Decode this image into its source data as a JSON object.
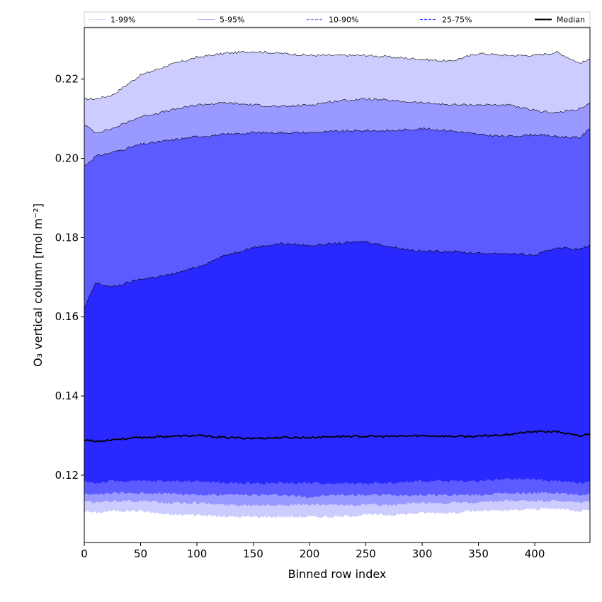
{
  "chart_data": {
    "type": "area",
    "title": "",
    "xlabel": "Binned row index",
    "ylabel": "O₃ vertical column [mol m⁻²]",
    "xlim": [
      0,
      449
    ],
    "ylim": [
      0.103,
      0.233
    ],
    "x_ticks": [
      0,
      50,
      100,
      150,
      200,
      250,
      300,
      350,
      400
    ],
    "y_ticks": [
      0.12,
      0.14,
      0.16,
      0.18,
      0.2,
      0.22
    ],
    "y_tick_labels": [
      "0.12",
      "0.14",
      "0.16",
      "0.18",
      "0.20",
      "0.22"
    ],
    "grid": false,
    "legend_position": "top",
    "colors": {
      "band_1_99": "#ccccff",
      "band_5_95": "#9999ff",
      "band_10_90": "#5b5bff",
      "band_25_75": "#2828ff",
      "median": "#000000",
      "outline": "#000000"
    },
    "legend": [
      {
        "label": "1-99%",
        "color": "#d0d0ff",
        "style": "thin"
      },
      {
        "label": "5-95%",
        "color": "#9a9aff",
        "style": "thin"
      },
      {
        "label": "10-90%",
        "color": "#8080ff",
        "style": "dashed"
      },
      {
        "label": "25-75%",
        "color": "#4040ff",
        "style": "dashed"
      },
      {
        "label": "Median",
        "color": "#000000",
        "style": "solid"
      }
    ],
    "x": [
      0,
      10,
      25,
      50,
      75,
      100,
      125,
      150,
      175,
      200,
      225,
      250,
      275,
      300,
      325,
      350,
      375,
      400,
      420,
      440,
      449
    ],
    "series": [
      {
        "name": "1-99%",
        "lower": [
          0.111,
          0.1105,
          0.111,
          0.111,
          0.11,
          0.11,
          0.1095,
          0.1095,
          0.1095,
          0.1095,
          0.1095,
          0.11,
          0.11,
          0.1105,
          0.1105,
          0.111,
          0.111,
          0.1115,
          0.1115,
          0.111,
          0.1115
        ],
        "upper": [
          0.215,
          0.215,
          0.216,
          0.221,
          0.2235,
          0.2255,
          0.2265,
          0.227,
          0.2265,
          0.226,
          0.226,
          0.226,
          0.2255,
          0.225,
          0.2245,
          0.2265,
          0.226,
          0.226,
          0.2268,
          0.224,
          0.225
        ]
      },
      {
        "name": "5-95%",
        "lower": [
          0.1135,
          0.113,
          0.1135,
          0.1135,
          0.113,
          0.113,
          0.1125,
          0.1125,
          0.1125,
          0.1125,
          0.1125,
          0.1125,
          0.1125,
          0.113,
          0.113,
          0.113,
          0.1135,
          0.1135,
          0.1135,
          0.113,
          0.1135
        ],
        "upper": [
          0.2085,
          0.2065,
          0.2075,
          0.2105,
          0.212,
          0.2135,
          0.214,
          0.2135,
          0.213,
          0.2135,
          0.2145,
          0.215,
          0.2145,
          0.214,
          0.2135,
          0.2135,
          0.2135,
          0.212,
          0.2115,
          0.2125,
          0.2138
        ]
      },
      {
        "name": "10-90%",
        "lower": [
          0.1155,
          0.115,
          0.1155,
          0.1155,
          0.1155,
          0.115,
          0.115,
          0.115,
          0.115,
          0.1145,
          0.115,
          0.115,
          0.115,
          0.115,
          0.115,
          0.115,
          0.1155,
          0.1155,
          0.1155,
          0.115,
          0.1155
        ],
        "upper": [
          0.198,
          0.2005,
          0.2015,
          0.2035,
          0.2045,
          0.2055,
          0.206,
          0.2065,
          0.2065,
          0.2065,
          0.2068,
          0.207,
          0.207,
          0.2075,
          0.207,
          0.206,
          0.2055,
          0.206,
          0.2055,
          0.2052,
          0.2075
        ]
      },
      {
        "name": "25-75%",
        "lower": [
          0.1185,
          0.118,
          0.1185,
          0.1185,
          0.1185,
          0.1185,
          0.118,
          0.118,
          0.118,
          0.118,
          0.118,
          0.118,
          0.118,
          0.1185,
          0.1185,
          0.1185,
          0.119,
          0.119,
          0.1185,
          0.118,
          0.1185
        ],
        "upper": [
          0.162,
          0.1685,
          0.1675,
          0.1695,
          0.1705,
          0.1725,
          0.1755,
          0.1775,
          0.1785,
          0.178,
          0.1785,
          0.179,
          0.1775,
          0.1765,
          0.1765,
          0.176,
          0.176,
          0.1755,
          0.1775,
          0.177,
          0.178
        ]
      },
      {
        "name": "Median",
        "values": [
          0.129,
          0.1285,
          0.129,
          0.1295,
          0.1298,
          0.13,
          0.1295,
          0.1293,
          0.1295,
          0.1295,
          0.1298,
          0.1298,
          0.1298,
          0.13,
          0.1298,
          0.1298,
          0.1303,
          0.131,
          0.131,
          0.1298,
          0.1305
        ]
      }
    ]
  }
}
